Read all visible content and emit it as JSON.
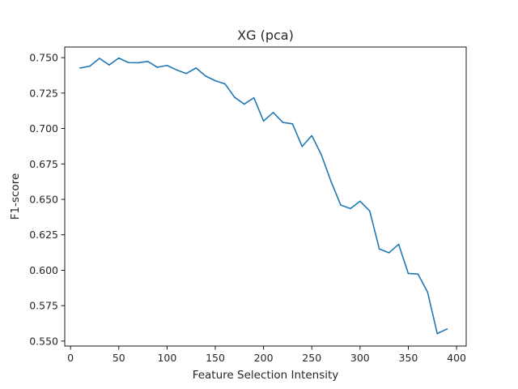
{
  "chart_data": {
    "type": "line",
    "title": "XG (pca)",
    "xlabel": "Feature Selection Intensity",
    "ylabel": "F1-score",
    "xlim": [
      -6,
      410
    ],
    "ylim": [
      0.5465,
      0.7575
    ],
    "xticks": [
      0,
      50,
      100,
      150,
      200,
      250,
      300,
      350,
      400
    ],
    "xtick_labels": [
      "0",
      "50",
      "100",
      "150",
      "200",
      "250",
      "300",
      "350",
      "400"
    ],
    "yticks": [
      0.55,
      0.575,
      0.6,
      0.625,
      0.65,
      0.675,
      0.7,
      0.725,
      0.75
    ],
    "ytick_labels": [
      "0.550",
      "0.575",
      "0.600",
      "0.625",
      "0.650",
      "0.675",
      "0.700",
      "0.725",
      "0.750"
    ],
    "grid": false,
    "series": [
      {
        "color": "#1f77b4",
        "x": [
          10,
          20,
          30,
          40,
          50,
          60,
          70,
          80,
          90,
          100,
          110,
          120,
          130,
          140,
          150,
          160,
          170,
          180,
          190,
          200,
          210,
          220,
          230,
          240,
          250,
          260,
          270,
          280,
          290,
          300,
          310,
          320,
          330,
          340,
          350,
          360,
          370,
          380,
          390
        ],
        "y": [
          0.7427,
          0.744,
          0.7495,
          0.7448,
          0.7497,
          0.7465,
          0.7464,
          0.7473,
          0.7432,
          0.7445,
          0.7413,
          0.7388,
          0.7427,
          0.737,
          0.7337,
          0.7315,
          0.722,
          0.7172,
          0.7217,
          0.7053,
          0.7113,
          0.7043,
          0.7033,
          0.6873,
          0.695,
          0.6813,
          0.6625,
          0.646,
          0.6435,
          0.6487,
          0.6418,
          0.615,
          0.6123,
          0.6183,
          0.5977,
          0.5973,
          0.5845,
          0.5553,
          0.5585
        ]
      }
    ]
  }
}
